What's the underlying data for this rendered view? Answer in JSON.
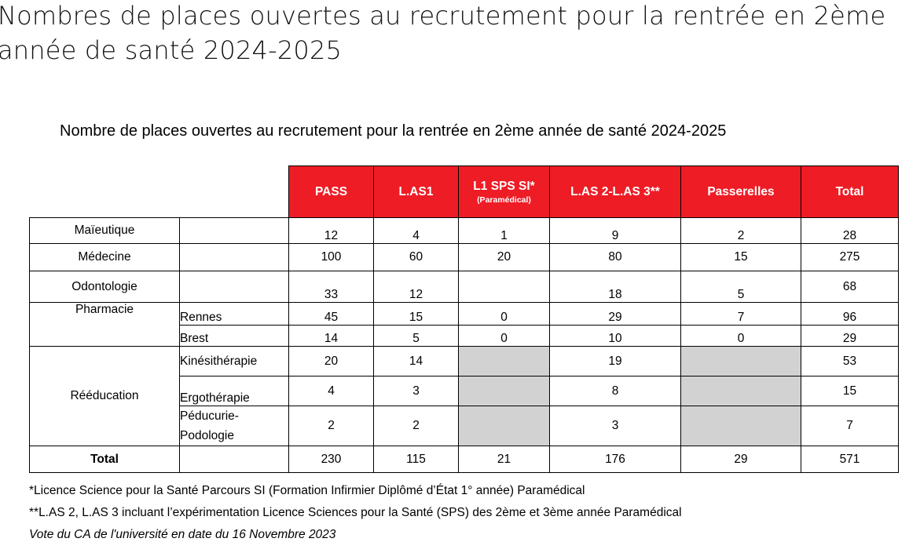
{
  "page_heading": "Nombres de places ouvertes au recrutement pour la rentrée en 2ème année de santé 2024-2025",
  "doc_title": "Nombre de places ouvertes au recrutement pour la rentrée en 2ème année de santé 2024-2025",
  "headers": {
    "pass": "PASS",
    "las1": "L.AS1",
    "l1sps": "L1 SPS SI*",
    "l1sps_sub": "(Paramédical)",
    "las23": "L.AS 2-L.AS 3**",
    "passerelles": "Passerelles",
    "total": "Total"
  },
  "rows": {
    "maieutique": {
      "label": "Maïeutique",
      "pass": "12",
      "las1": "4",
      "l1sps": "1",
      "las23": "9",
      "passerelles": "2",
      "total": "28"
    },
    "medecine": {
      "label": "Médecine",
      "pass": "100",
      "las1": "60",
      "l1sps": "20",
      "las23": "80",
      "passerelles": "15",
      "total": "275"
    },
    "odontologie": {
      "label": "Odontologie",
      "pass": "33",
      "las1": "12",
      "l1sps": "",
      "las23": "18",
      "passerelles": "5",
      "total": "68"
    },
    "pharmacie": {
      "label": "Pharmacie",
      "rennes": {
        "label": "Rennes",
        "pass": "45",
        "las1": "15",
        "l1sps": "0",
        "las23": "29",
        "passerelles": "7",
        "total": "96"
      },
      "brest": {
        "label": "Brest",
        "pass": "14",
        "las1": "5",
        "l1sps": "0",
        "las23": "10",
        "passerelles": "0",
        "total": "29"
      }
    },
    "reeducation": {
      "label": "Rééducation",
      "kine": {
        "label": "Kinésithérapie",
        "pass": "20",
        "las1": "14",
        "las23": "19",
        "total": "53"
      },
      "ergo": {
        "label": "Ergothérapie",
        "pass": "4",
        "las1": "3",
        "las23": "8",
        "total": "15"
      },
      "pedi": {
        "label1": "Péducurie-",
        "label2": "Podologie",
        "pass": "2",
        "las1": "2",
        "las23": "3",
        "total": "7"
      }
    },
    "total": {
      "label": "Total",
      "pass": "230",
      "las1": "115",
      "l1sps": "21",
      "las23": "176",
      "passerelles": "29",
      "total": "571"
    }
  },
  "footnotes": {
    "fn1": "*Licence Science pour la Santé Parcours SI (Formation Infirmier Diplômé d’État 1° année) Paramédical",
    "fn2": "**L.AS 2, L.AS 3 incluant l’expérimentation Licence Sciences pour la Santé (SPS) des 2ème et 3ème année  Paramédical",
    "fn3": "Vote du CA de l'université en date du 16 Novembre 2023"
  }
}
